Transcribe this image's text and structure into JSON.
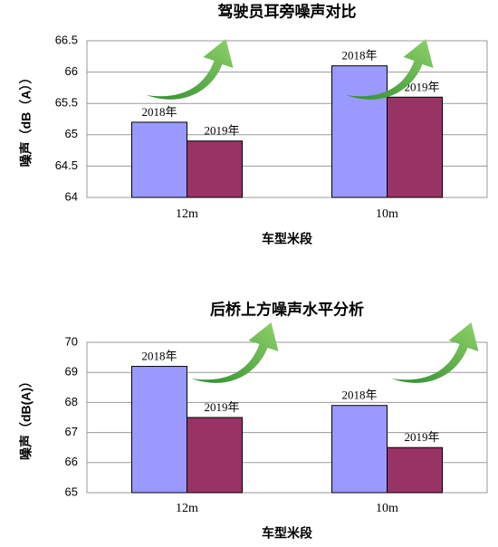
{
  "chart_data": [
    {
      "type": "bar",
      "title": "驾驶员耳旁噪声对比",
      "x_label": "车型米段",
      "y_label": "噪声（dB（A））",
      "categories": [
        "12m",
        "10m"
      ],
      "series": [
        {
          "name": "2018年",
          "color": "#9999ff",
          "values": [
            65.2,
            66.1
          ]
        },
        {
          "name": "2019年",
          "color": "#993366",
          "values": [
            64.9,
            65.6
          ]
        }
      ],
      "ylim": [
        64,
        66.5
      ],
      "yticks": [
        64,
        64.5,
        65,
        65.5,
        66,
        66.5
      ],
      "grid": true
    },
    {
      "type": "bar",
      "title": "后桥上方噪声水平分析",
      "x_label": "车型米段",
      "y_label": "噪声（dB(A)）",
      "categories": [
        "12m",
        "10m"
      ],
      "series": [
        {
          "name": "2018年",
          "color": "#9999ff",
          "values": [
            69.2,
            67.9
          ]
        },
        {
          "name": "2019年",
          "color": "#993366",
          "values": [
            67.5,
            66.5
          ]
        }
      ],
      "ylim": [
        65,
        70
      ],
      "yticks": [
        65,
        66,
        67,
        68,
        69,
        70
      ],
      "grid": true
    }
  ]
}
